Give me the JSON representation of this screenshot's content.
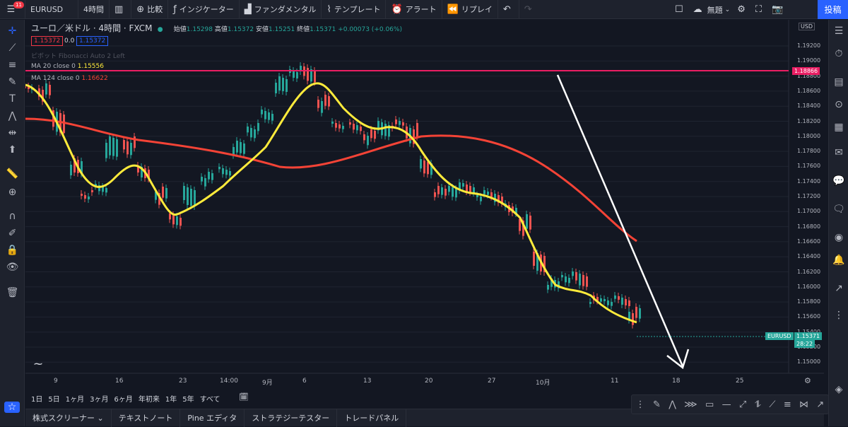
{
  "topbar": {
    "badge": "11",
    "symbol": "EURUSD",
    "interval": "4時間",
    "compare": "比較",
    "indicators": "インジケーター",
    "fundamentals": "ファンダメンタル",
    "templates": "テンプレート",
    "alert": "アラート",
    "replay": "リプレイ",
    "layout": "無題",
    "post": "投稿"
  },
  "legend": {
    "title": "ユーロ／米ドル · 4時間 · FXCM",
    "open_label": "始値",
    "open": "1.15298",
    "high_label": "高値",
    "high": "1.15372",
    "low_label": "安値",
    "low": "1.15251",
    "close_label": "終値",
    "close": "1.15371",
    "change": "+0.00073 (+0.06%)",
    "bid": "1.15372",
    "spread": "0.0",
    "ask": "1.15372",
    "pivot": "ピボット Fibonacci Auto 2 Left",
    "ma20_label": "MA 20 close 0",
    "ma20_value": "1.15556",
    "ma124_label": "MA 124 close 0",
    "ma124_value": "1.16622"
  },
  "axis": {
    "currency": "USD",
    "y_ticks": [
      "1.19200",
      "1.19000",
      "1.18800",
      "1.18600",
      "1.18400",
      "1.18200",
      "1.18000",
      "1.17800",
      "1.17600",
      "1.17400",
      "1.17200",
      "1.17000",
      "1.16800",
      "1.16600",
      "1.16400",
      "1.16200",
      "1.16000",
      "1.15800",
      "1.15600",
      "1.15400",
      "1.15200",
      "1.15000"
    ],
    "x_ticks": [
      "9",
      "16",
      "23",
      "14:00",
      "9月",
      "6",
      "13",
      "20",
      "27",
      "10月",
      "11",
      "18",
      "25"
    ],
    "hline_price": "1.18866",
    "last_symbol": "EURUSD",
    "last_price": "1.15371",
    "countdown": "28:22"
  },
  "range": [
    "1日",
    "5日",
    "1ヶ月",
    "3ヶ月",
    "6ヶ月",
    "年初来",
    "1年",
    "5年",
    "すべて"
  ],
  "bottom_tabs": [
    "株式スクリーナー",
    "テキストノート",
    "Pine エディタ",
    "ストラテジーテスター",
    "トレードパネル"
  ],
  "colors": {
    "up": "#26a69a",
    "down": "#ef5350",
    "ma20": "#ffeb3b",
    "ma124": "#f44336",
    "hline": "#e91e63",
    "accent": "#2962ff"
  },
  "chart_data": {
    "type": "candlestick",
    "title": "",
    "ylim": [
      1.149,
      1.193
    ],
    "ma20_last": 1.15556,
    "ma124_last": 1.16622,
    "horizontal_line": 1.18866,
    "annotation": "white downward arrow"
  }
}
